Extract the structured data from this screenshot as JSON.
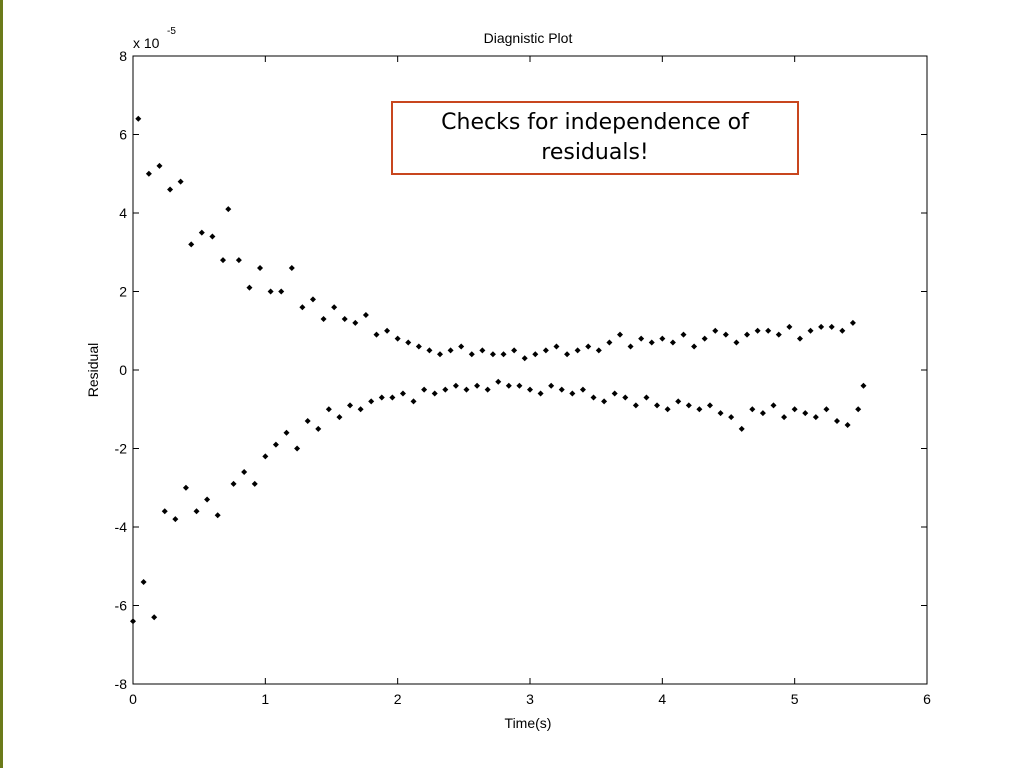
{
  "chart_data": {
    "type": "scatter",
    "title": "Diagnistic Plot",
    "xlabel": "Time(s)",
    "ylabel": "Residual",
    "y_multiplier": {
      "base": "x 10",
      "exponent": "-5"
    },
    "annotation": "Checks for independence of residuals!",
    "xlim": [
      0,
      6
    ],
    "xticks": [
      0,
      1,
      2,
      3,
      4,
      5,
      6
    ],
    "ylim": [
      -8,
      8
    ],
    "yticks": [
      -8,
      -6,
      -4,
      -2,
      0,
      2,
      4,
      6,
      8
    ],
    "x": [
      0.0,
      0.04,
      0.08,
      0.12,
      0.16,
      0.2,
      0.24,
      0.28,
      0.32,
      0.36,
      0.4,
      0.44,
      0.48,
      0.52,
      0.56,
      0.6,
      0.64,
      0.68,
      0.72,
      0.76,
      0.8,
      0.84,
      0.88,
      0.92,
      0.96,
      1.0,
      1.04,
      1.08,
      1.12,
      1.16,
      1.2,
      1.24,
      1.28,
      1.32,
      1.36,
      1.4,
      1.44,
      1.48,
      1.52,
      1.56,
      1.6,
      1.64,
      1.68,
      1.72,
      1.76,
      1.8,
      1.84,
      1.88,
      1.92,
      1.96,
      2.0,
      2.04,
      2.08,
      2.12,
      2.16,
      2.2,
      2.24,
      2.28,
      2.32,
      2.36,
      2.4,
      2.44,
      2.48,
      2.52,
      2.56,
      2.6,
      2.64,
      2.68,
      2.72,
      2.76,
      2.8,
      2.84,
      2.88,
      2.92,
      2.96,
      3.0,
      3.04,
      3.08,
      3.12,
      3.16,
      3.2,
      3.24,
      3.28,
      3.32,
      3.36,
      3.4,
      3.44,
      3.48,
      3.52,
      3.56,
      3.6,
      3.64,
      3.68,
      3.72,
      3.76,
      3.8,
      3.84,
      3.88,
      3.92,
      3.96,
      4.0,
      4.04,
      4.08,
      4.12,
      4.16,
      4.2,
      4.24,
      4.28,
      4.32,
      4.36,
      4.4,
      4.44,
      4.48,
      4.52,
      4.56,
      4.6,
      4.64,
      4.68,
      4.72,
      4.76,
      4.8,
      4.84,
      4.88,
      4.92,
      4.96,
      5.0,
      5.04,
      5.08,
      5.12,
      5.16,
      5.2,
      5.24,
      5.28,
      5.32,
      5.36,
      5.4,
      5.44,
      5.48,
      5.52
    ],
    "series": [
      {
        "color": "#000000",
        "values": [
          -6.4,
          6.4,
          -5.4,
          5.0,
          -6.3,
          5.2,
          -3.6,
          4.6,
          -3.8,
          4.8,
          -3.0,
          3.2,
          -3.6,
          3.5,
          -3.3,
          3.4,
          -3.7,
          2.8,
          4.1,
          -2.9,
          2.8,
          -2.6,
          2.1,
          -2.9,
          2.6,
          -2.2,
          2.0,
          -1.9,
          2.0,
          -1.6,
          2.6,
          -2.0,
          1.6,
          -1.3,
          1.8,
          -1.5,
          1.3,
          -1.0,
          1.6,
          -1.2,
          1.3,
          -0.9,
          1.2,
          -1.0,
          1.4,
          -0.8,
          0.9,
          -0.7,
          1.0,
          -0.7,
          0.8,
          -0.6,
          0.7,
          -0.8,
          0.6,
          -0.5,
          0.5,
          -0.6,
          0.4,
          -0.5,
          0.5,
          -0.4,
          0.6,
          -0.5,
          0.4,
          -0.4,
          0.5,
          -0.5,
          0.4,
          -0.3,
          0.4,
          -0.4,
          0.5,
          -0.4,
          0.3,
          -0.5,
          0.4,
          -0.6,
          0.5,
          -0.4,
          0.6,
          -0.5,
          0.4,
          -0.6,
          0.5,
          -0.5,
          0.6,
          -0.7,
          0.5,
          -0.8,
          0.7,
          -0.6,
          0.9,
          -0.7,
          0.6,
          -0.9,
          0.8,
          -0.7,
          0.7,
          -0.9,
          0.8,
          -1.0,
          0.7,
          -0.8,
          0.9,
          -0.9,
          0.6,
          -1.0,
          0.8,
          -0.9,
          1.0,
          -1.1,
          0.9,
          -1.2,
          0.7,
          -1.5,
          0.9,
          -1.0,
          1.0,
          -1.1,
          1.0,
          -0.9,
          0.9,
          -1.2,
          1.1,
          -1.0,
          0.8,
          -1.1,
          1.0,
          -1.2,
          1.1,
          -1.0,
          1.1,
          -1.3,
          1.0,
          -1.4,
          1.2,
          -1.0,
          -0.4
        ]
      }
    ]
  }
}
